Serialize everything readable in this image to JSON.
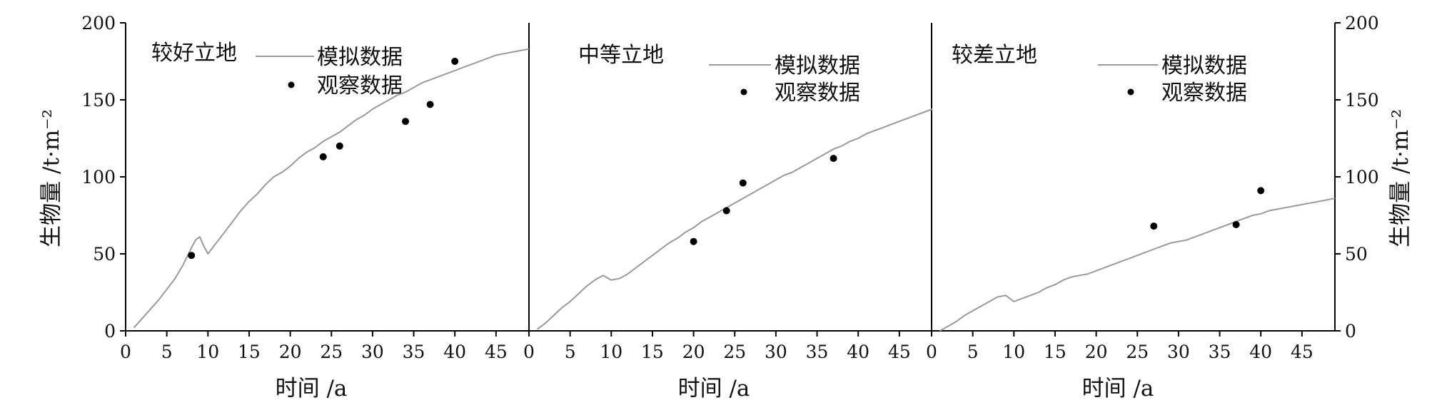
{
  "chart_data": {
    "type": "line",
    "y_axis_title": "生物量 /t·m⁻²",
    "x_axis_title": "时间 /a",
    "ylim": [
      0,
      200
    ],
    "y_ticks": [
      0,
      50,
      100,
      150,
      200
    ],
    "xlim": [
      0,
      49
    ],
    "x_ticks": [
      0,
      5,
      10,
      15,
      20,
      25,
      30,
      35,
      40,
      45
    ],
    "colors": {
      "simulated_line": "#9a9a9a",
      "observed_point": "#000000",
      "axis": "#000000"
    },
    "legend": {
      "simulated": "模拟数据",
      "observed": "观察数据"
    },
    "panels": [
      {
        "title": "较好立地",
        "series": [
          {
            "name": "模拟数据",
            "kind": "line",
            "x": [
              1,
              2,
              3,
              4,
              5,
              6,
              7,
              8,
              8.5,
              9,
              9.5,
              10,
              11,
              12,
              13,
              14,
              15,
              16,
              17,
              18,
              19,
              20,
              21,
              22,
              23,
              24,
              25,
              26,
              27,
              28,
              29,
              30,
              31,
              32,
              33,
              34,
              35,
              36,
              37,
              38,
              39,
              40,
              41,
              42,
              43,
              44,
              45,
              46,
              47,
              48,
              49
            ],
            "y": [
              2,
              8,
              14,
              20,
              27,
              34,
              43,
              54,
              59,
              61,
              55,
              50,
              57,
              64,
              71,
              78,
              84,
              89,
              95,
              100,
              103,
              107,
              112,
              116,
              119,
              123,
              126,
              129,
              133,
              137,
              140,
              144,
              147,
              150,
              153,
              155,
              158,
              161,
              163,
              165,
              167,
              169,
              171,
              173,
              175,
              177,
              179,
              180,
              181,
              182,
              183
            ]
          },
          {
            "name": "观察数据",
            "kind": "points",
            "x": [
              8,
              24,
              26,
              34,
              37,
              40
            ],
            "y": [
              49,
              113,
              120,
              136,
              147,
              175
            ]
          }
        ]
      },
      {
        "title": "中等立地",
        "series": [
          {
            "name": "模拟数据",
            "kind": "line",
            "x": [
              1,
              2,
              3,
              4,
              5,
              6,
              7,
              8,
              9,
              10,
              11,
              12,
              13,
              14,
              15,
              16,
              17,
              18,
              19,
              20,
              21,
              22,
              23,
              24,
              25,
              26,
              27,
              28,
              29,
              30,
              31,
              32,
              33,
              34,
              35,
              36,
              37,
              38,
              39,
              40,
              41,
              42,
              43,
              44,
              45,
              46,
              47,
              48,
              49
            ],
            "y": [
              1,
              5,
              10,
              15,
              19,
              24,
              29,
              33,
              36,
              33,
              34,
              37,
              41,
              45,
              49,
              53,
              57,
              60,
              64,
              67,
              71,
              74,
              77,
              80,
              83,
              86,
              89,
              92,
              95,
              98,
              101,
              103,
              106,
              109,
              112,
              115,
              118,
              120,
              123,
              125,
              128,
              130,
              132,
              134,
              136,
              138,
              140,
              142,
              144
            ]
          },
          {
            "name": "观察数据",
            "kind": "points",
            "x": [
              20,
              24,
              26,
              37
            ],
            "y": [
              58,
              78,
              96,
              112
            ]
          }
        ]
      },
      {
        "title": "较差立地",
        "series": [
          {
            "name": "模拟数据",
            "kind": "line",
            "x": [
              1,
              2,
              3,
              4,
              5,
              6,
              7,
              8,
              9,
              10,
              11,
              12,
              13,
              14,
              15,
              16,
              17,
              18,
              19,
              20,
              21,
              22,
              23,
              24,
              25,
              26,
              27,
              28,
              29,
              30,
              31,
              32,
              33,
              34,
              35,
              36,
              37,
              38,
              39,
              40,
              41,
              42,
              43,
              44,
              45,
              46,
              47,
              48,
              49
            ],
            "y": [
              0,
              3,
              6,
              10,
              13,
              16,
              19,
              22,
              23,
              19,
              21,
              23,
              25,
              28,
              30,
              33,
              35,
              36,
              37,
              39,
              41,
              43,
              45,
              47,
              49,
              51,
              53,
              55,
              57,
              58,
              59,
              61,
              63,
              65,
              67,
              69,
              71,
              73,
              75,
              76,
              78,
              79,
              80,
              81,
              82,
              83,
              84,
              85,
              86
            ]
          },
          {
            "name": "观察数据",
            "kind": "points",
            "x": [
              27,
              37,
              40
            ],
            "y": [
              68,
              69,
              91
            ]
          }
        ]
      }
    ]
  }
}
